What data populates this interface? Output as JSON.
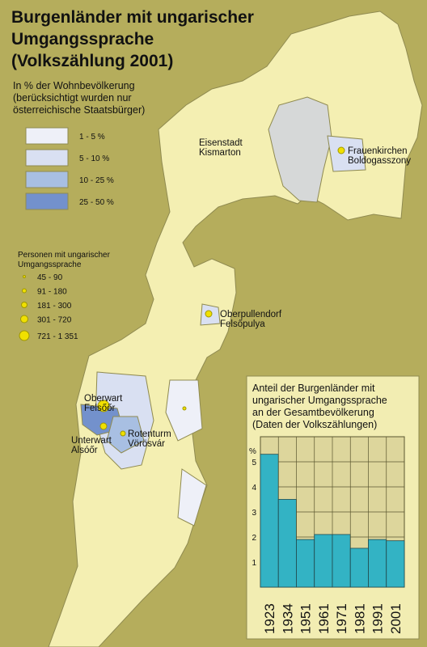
{
  "title": [
    "Burgenländer mit ungarischer",
    "Umgangssprache",
    "(Volkszählung 2001)"
  ],
  "subtitle": [
    "In % der Wohnbevölkerung",
    "(berücksichtigt wurden nur",
    "österreichische Staatsbürger)"
  ],
  "share_legend": [
    {
      "label": "1 - 5 %",
      "color": "#eef0f8"
    },
    {
      "label": "5 - 10 %",
      "color": "#d9e0f2"
    },
    {
      "label": "10 - 25 %",
      "color": "#a8bfe2"
    },
    {
      "label": "25 - 50 %",
      "color": "#7391cc"
    }
  ],
  "persons_legend": {
    "title": [
      "Personen mit ungarischer",
      "Umgangssprache"
    ],
    "items": [
      "45 - 90",
      "91 - 180",
      "181 - 300",
      "301 - 720",
      "721 - 1 351"
    ]
  },
  "places": [
    {
      "label": [
        "Eisenstadt",
        "Kismarton"
      ]
    },
    {
      "label": [
        "Frauenkirchen",
        "Boldogasszony"
      ]
    },
    {
      "label": [
        "Oberpullendorf",
        "Felsőpulya"
      ]
    },
    {
      "label": [
        "Oberwart",
        "Felsőőr"
      ]
    },
    {
      "label": [
        "Unterwart",
        "Alsóőr"
      ]
    },
    {
      "label": [
        "Rotenturm",
        "Vörösvár"
      ]
    }
  ],
  "chart_data": {
    "type": "bar",
    "title": [
      "Anteil der Burgenländer mit",
      "ungarischer Umgangssprache",
      "an der Gesamtbevölkerung",
      "(Daten der Volkszählungen)"
    ],
    "y_label": "%",
    "categories": [
      "1923",
      "1934",
      "1951",
      "1961",
      "1971",
      "1981",
      "1991",
      "2001"
    ],
    "values": [
      5.3,
      3.5,
      1.9,
      2.1,
      2.1,
      1.55,
      1.9,
      1.85
    ],
    "color": "#33b3c4",
    "ylim": [
      0,
      6
    ],
    "yticks": [
      1,
      2,
      3,
      4,
      5
    ],
    "grid": true
  }
}
